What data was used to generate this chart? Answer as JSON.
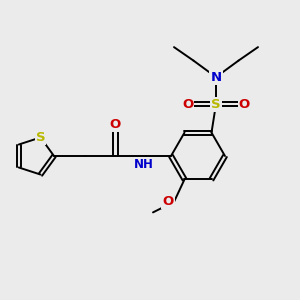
{
  "background_color": "#ebebeb",
  "bond_color": "#000000",
  "S_thiophene_color": "#b8b800",
  "S_sulfonyl_color": "#b8b800",
  "N_color": "#0000cc",
  "O_color": "#cc0000",
  "figsize": [
    3.0,
    3.0
  ],
  "dpi": 100,
  "xlim": [
    0,
    10
  ],
  "ylim": [
    0,
    10
  ]
}
